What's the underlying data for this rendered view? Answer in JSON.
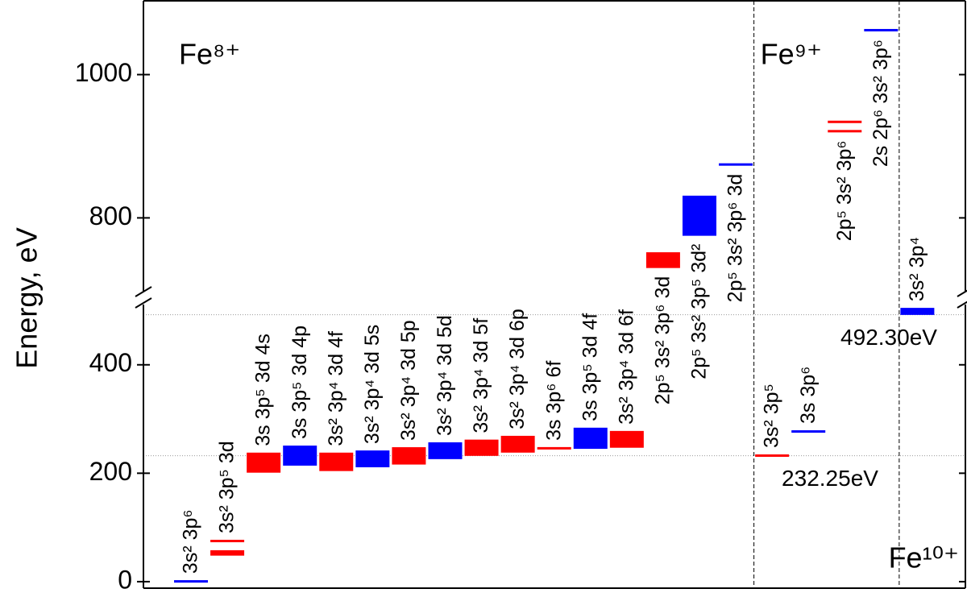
{
  "chart_data": {
    "type": "levels",
    "y_label": "Energy, eV",
    "ylim": [
      -12,
      1103
    ],
    "axis_break": [
      523,
      688
    ],
    "yticks": [
      0,
      200,
      400,
      800,
      1000
    ],
    "reference_lines": [
      {
        "value": 232.25,
        "label": "232.25eV"
      },
      {
        "value": 492.3,
        "label": "492.30eV"
      }
    ],
    "groups": [
      {
        "name": "Fe⁸⁺",
        "configs": [
          {
            "label": "3s² 3p⁶",
            "color": "#0000ff",
            "ranges": [
              [
                0,
                1
              ]
            ]
          },
          {
            "label": "3s² 3p⁵ 3d",
            "color": "#ff0000",
            "ranges": [
              [
                48,
                58
              ],
              [
                74,
                76
              ]
            ]
          },
          {
            "label": "3s 3p⁵ 3d 4s",
            "color": "#ff0000",
            "ranges": [
              [
                201,
                238
              ]
            ]
          },
          {
            "label": "3s 3p⁵ 3d 4p",
            "color": "#0000ff",
            "ranges": [
              [
                214,
                251
              ]
            ]
          },
          {
            "label": "3s² 3p⁴ 3d 4f",
            "color": "#ff0000",
            "ranges": [
              [
                204,
                238
              ]
            ]
          },
          {
            "label": "3s² 3p⁴ 3d 5s",
            "color": "#0000ff",
            "ranges": [
              [
                211,
                242
              ]
            ]
          },
          {
            "label": "3s² 3p⁴ 3d 5p",
            "color": "#ff0000",
            "ranges": [
              [
                216,
                248
              ]
            ]
          },
          {
            "label": "3s² 3p⁴ 3d 5d",
            "color": "#0000ff",
            "ranges": [
              [
                226,
                257
              ]
            ]
          },
          {
            "label": "3s² 3p⁴ 3d 5f",
            "color": "#ff0000",
            "ranges": [
              [
                232,
                262
              ]
            ]
          },
          {
            "label": "3s² 3p⁴ 3d 6p",
            "color": "#ff0000",
            "ranges": [
              [
                238,
                269
              ]
            ]
          },
          {
            "label": "3s 3p⁶ 6f",
            "color": "#ff0000",
            "ranges": [
              [
                245,
                247
              ]
            ]
          },
          {
            "label": "3s 3p⁵ 3d 4f",
            "color": "#0000ff",
            "ranges": [
              [
                245,
                284
              ]
            ]
          },
          {
            "label": "3s² 3p⁴ 3d 6f",
            "color": "#ff0000",
            "ranges": [
              [
                247,
                278
              ]
            ]
          },
          {
            "label": "2p⁵ 3s² 3p⁶ 3d",
            "color": "#ff0000",
            "ranges": [
              [
                730,
                752
              ]
            ]
          },
          {
            "label": "2p⁵ 3s² 3p⁵ 3d²",
            "color": "#0000ff",
            "ranges": [
              [
                775,
                831
              ]
            ]
          },
          {
            "label": "2p⁵ 3s² 3p⁶ 3d",
            "color": "#0000ff",
            "ranges": [
              [
                873,
                876
              ]
            ]
          }
        ]
      },
      {
        "name": "Fe⁹⁺",
        "configs": [
          {
            "label": "3s² 3p⁵",
            "color": "#ff0000",
            "ranges": [
              [
                231,
                234
              ]
            ]
          },
          {
            "label": "3s 3p⁶",
            "color": "#0000ff",
            "ranges": [
              [
                276,
                278
              ]
            ]
          },
          {
            "label": "2p⁵ 3s² 3p⁶",
            "color": "#ff0000",
            "ranges": [
              [
                920,
                922
              ],
              [
                933,
                935
              ]
            ]
          },
          {
            "label": "2s 2p⁶ 3s² 3p⁶",
            "color": "#0000ff",
            "ranges": [
              [
                1061,
                1063
              ]
            ]
          }
        ]
      },
      {
        "name": "Fe¹⁰⁺",
        "configs": [
          {
            "label": "3s² 3p⁴",
            "color": "#0000ff",
            "ranges": [
              [
                492,
                505
              ]
            ]
          }
        ]
      }
    ]
  }
}
